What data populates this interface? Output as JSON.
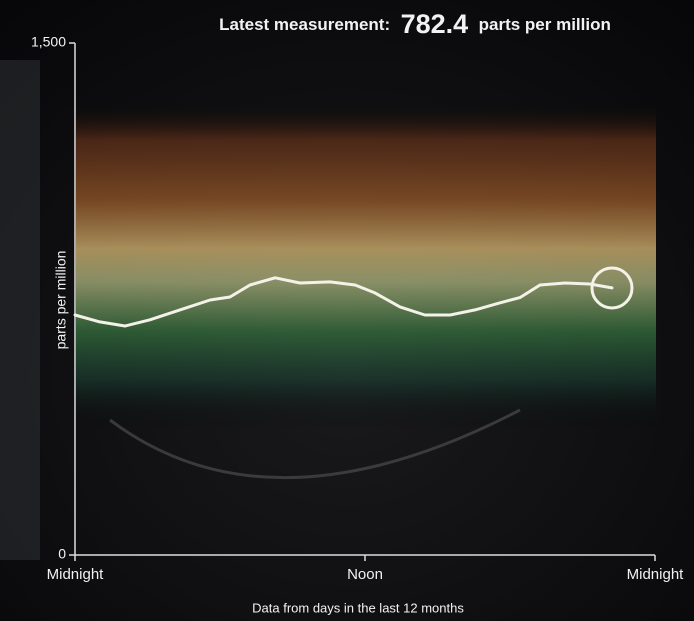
{
  "chart_data": {
    "type": "line",
    "title_prefix": "Latest measurement:",
    "latest_value": 782.4,
    "title_unit": "parts per million",
    "ylabel": "parts per million",
    "xlabel": "Data from days in the last 12 months",
    "ylim": [
      0,
      1500
    ],
    "yticks": [
      0,
      {
        "value": 1500,
        "label": "1,500"
      }
    ],
    "xlim": [
      0,
      24
    ],
    "xticks": [
      {
        "value": 0,
        "label": "Midnight"
      },
      {
        "value": 12,
        "label": "Noon"
      },
      {
        "value": 24,
        "label": "Midnight"
      }
    ],
    "series": [
      {
        "color": "#f4f1e8",
        "x": [
          0,
          1.03,
          2.07,
          3.1,
          4.34,
          5.59,
          6.41,
          7.24,
          8.28,
          9.31,
          10.55,
          11.59,
          12.41,
          13.45,
          14.48,
          15.52,
          16.55,
          17.59,
          18.41,
          19.24,
          20.28,
          21.31,
          22.22
        ],
        "values": [
          703,
          683,
          671,
          689,
          718,
          747,
          756,
          791,
          812,
          797,
          800,
          791,
          768,
          727,
          703,
          703,
          718,
          739,
          754,
          791,
          797,
          794,
          782.4
        ]
      }
    ]
  }
}
